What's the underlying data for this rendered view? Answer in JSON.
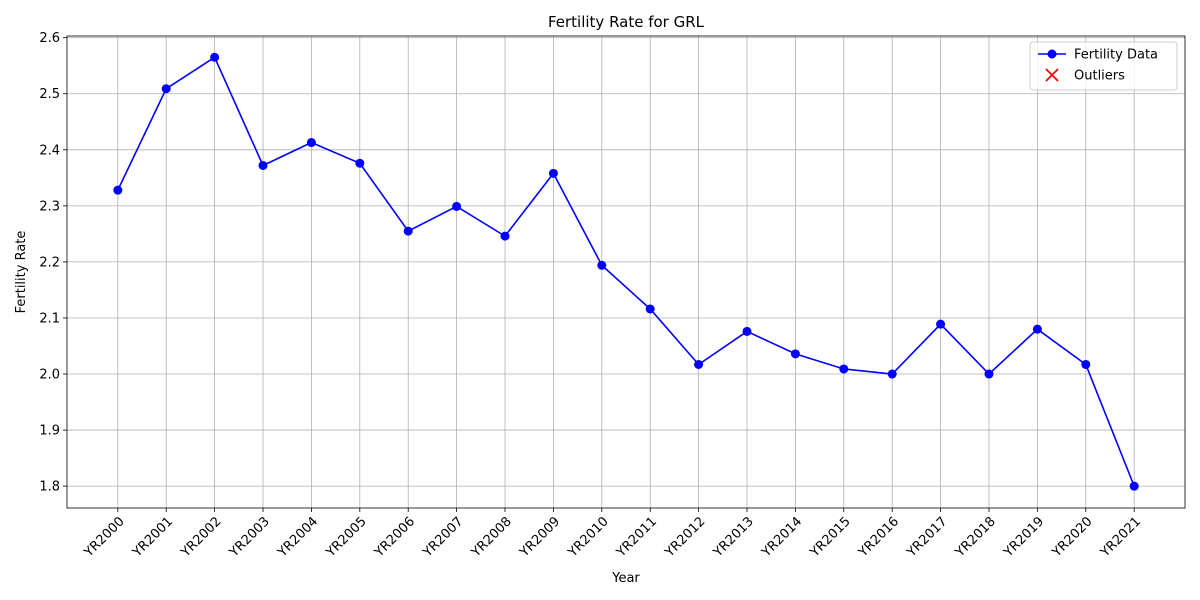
{
  "chart_data": {
    "type": "line",
    "title": "Fertility Rate for GRL",
    "x_label": "Year",
    "y_label": "Fertility Rate",
    "categories": [
      "YR2000",
      "YR2001",
      "YR2002",
      "YR2003",
      "YR2004",
      "YR2005",
      "YR2006",
      "YR2007",
      "YR2008",
      "YR2009",
      "YR2010",
      "YR2011",
      "YR2012",
      "YR2013",
      "YR2014",
      "YR2015",
      "YR2016",
      "YR2017",
      "YR2018",
      "YR2019",
      "YR2020",
      "YR2021"
    ],
    "series": [
      {
        "name": "Fertility Data",
        "color": "#0000ff",
        "marker": "o",
        "values": [
          2.328,
          2.509,
          2.565,
          2.372,
          2.413,
          2.376,
          2.255,
          2.299,
          2.246,
          2.358,
          2.194,
          2.116,
          2.017,
          2.076,
          2.036,
          2.009,
          2.0,
          2.089,
          2.0,
          2.08,
          2.017,
          1.8
        ]
      },
      {
        "name": "Outliers",
        "color": "#ff0000",
        "marker": "x",
        "values": [
          null,
          null,
          null,
          null,
          null,
          null,
          null,
          null,
          null,
          null,
          null,
          null,
          null,
          null,
          null,
          null,
          null,
          null,
          null,
          null,
          null,
          null
        ]
      }
    ],
    "ylim": [
      1.761,
      2.603
    ],
    "yticks": [
      1.8,
      1.9,
      {
        "value": 2,
        "label": "2.0"
      },
      2.1,
      2.2,
      2.3,
      2.4,
      2.5,
      2.6
    ],
    "grid": true,
    "legend": "upper right"
  }
}
